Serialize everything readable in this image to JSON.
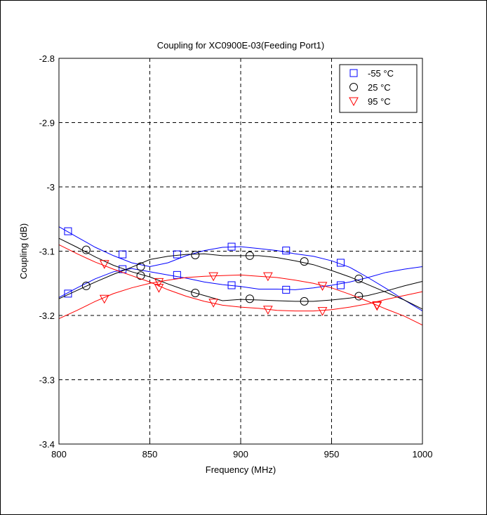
{
  "chart_data": {
    "type": "line",
    "title": "Coupling for XC0900E-03(Feeding Port1)",
    "xlabel": "Frequency (MHz)",
    "ylabel": "Coupling (dB)",
    "xlim": [
      800,
      1000
    ],
    "ylim": [
      -3.4,
      -2.8
    ],
    "xticks": [
      800,
      850,
      900,
      950,
      1000
    ],
    "xtick_labels": [
      "800",
      "850",
      "900",
      "950",
      "1000"
    ],
    "yticks": [
      -3.4,
      -3.3,
      -3.2,
      -3.1,
      -3.0,
      -2.9,
      -2.8
    ],
    "ytick_labels": [
      "-3.4",
      "-3.3",
      "-3.2",
      "-3.1",
      "-3",
      "-2.9",
      "-2.8"
    ],
    "grid": true,
    "legend_position": "top-right",
    "legend": [
      {
        "label": "-55 °C",
        "marker": "square",
        "color": "#0000ff"
      },
      {
        "label": "25 °C",
        "marker": "circle",
        "color": "#000000"
      },
      {
        "label": "95 °C",
        "marker": "triangle-down",
        "color": "#ff0000"
      }
    ],
    "series": [
      {
        "name": "-55 °C",
        "color": "#0000ff",
        "marker": "square",
        "lines": [
          {
            "x": [
              800,
              810,
              820,
              830,
              840,
              850,
              860,
              870,
              880,
              890,
              900,
              910,
              920,
              930,
              940,
              950,
              960,
              970,
              980,
              990,
              1000
            ],
            "y": [
              -3.062,
              -3.078,
              -3.094,
              -3.107,
              -3.118,
              -3.124,
              -3.118,
              -3.107,
              -3.099,
              -3.094,
              -3.093,
              -3.096,
              -3.099,
              -3.104,
              -3.108,
              -3.115,
              -3.125,
              -3.141,
              -3.158,
              -3.176,
              -3.193
            ]
          },
          {
            "x": [
              800,
              810,
              820,
              830,
              840,
              850,
              860,
              870,
              880,
              890,
              900,
              910,
              920,
              930,
              940,
              950,
              960,
              970,
              980,
              990,
              1000
            ],
            "y": [
              -3.172,
              -3.157,
              -3.143,
              -3.132,
              -3.127,
              -3.132,
              -3.137,
              -3.142,
              -3.148,
              -3.152,
              -3.155,
              -3.159,
              -3.159,
              -3.16,
              -3.157,
              -3.153,
              -3.148,
              -3.141,
              -3.133,
              -3.128,
              -3.124
            ]
          }
        ],
        "markers": {
          "x": [
            805,
            835,
            865,
            895,
            925,
            955,
            805,
            835,
            865,
            895,
            925,
            955
          ],
          "y": [
            -3.069,
            -3.105,
            -3.105,
            -3.093,
            -3.099,
            -3.118,
            -3.166,
            -3.128,
            -3.137,
            -3.153,
            -3.16,
            -3.153
          ]
        }
      },
      {
        "name": "25 °C",
        "color": "#000000",
        "marker": "circle",
        "lines": [
          {
            "x": [
              800,
              810,
              820,
              830,
              840,
              850,
              860,
              870,
              880,
              890,
              900,
              910,
              920,
              930,
              940,
              950,
              960,
              970,
              980,
              990,
              1000
            ],
            "y": [
              -3.08,
              -3.094,
              -3.109,
              -3.122,
              -3.132,
              -3.14,
              -3.151,
              -3.161,
              -3.169,
              -3.177,
              -3.175,
              -3.176,
              -3.177,
              -3.178,
              -3.178,
              -3.176,
              -3.173,
              -3.169,
              -3.162,
              -3.154,
              -3.147
            ]
          },
          {
            "x": [
              800,
              810,
              820,
              830,
              840,
              850,
              860,
              870,
              880,
              890,
              900,
              910,
              920,
              930,
              940,
              950,
              960,
              970,
              980,
              990,
              1000
            ],
            "y": [
              -3.174,
              -3.161,
              -3.148,
              -3.136,
              -3.125,
              -3.113,
              -3.108,
              -3.105,
              -3.104,
              -3.107,
              -3.107,
              -3.107,
              -3.11,
              -3.115,
              -3.121,
              -3.13,
              -3.14,
              -3.152,
              -3.164,
              -3.176,
              -3.19
            ]
          }
        ],
        "markers": {
          "x": [
            815,
            845,
            875,
            905,
            935,
            965,
            815,
            845,
            875,
            905,
            935,
            965
          ],
          "y": [
            -3.098,
            -3.138,
            -3.165,
            -3.174,
            -3.178,
            -3.17,
            -3.154,
            -3.124,
            -3.106,
            -3.107,
            -3.116,
            -3.143
          ]
        }
      },
      {
        "name": "95 °C",
        "color": "#ff0000",
        "marker": "triangle-down",
        "lines": [
          {
            "x": [
              800,
              810,
              820,
              830,
              840,
              850,
              860,
              870,
              880,
              890,
              900,
              910,
              920,
              930,
              940,
              950,
              960,
              970,
              980,
              990,
              1000
            ],
            "y": [
              -3.09,
              -3.104,
              -3.117,
              -3.128,
              -3.138,
              -3.148,
              -3.16,
              -3.17,
              -3.178,
              -3.184,
              -3.187,
              -3.189,
              -3.192,
              -3.193,
              -3.193,
              -3.191,
              -3.187,
              -3.182,
              -3.175,
              -3.169,
              -3.163
            ]
          },
          {
            "x": [
              800,
              810,
              820,
              830,
              840,
              850,
              860,
              870,
              880,
              890,
              900,
              910,
              920,
              930,
              940,
              950,
              960,
              970,
              980,
              990,
              1000
            ],
            "y": [
              -3.205,
              -3.192,
              -3.178,
              -3.166,
              -3.157,
              -3.15,
              -3.145,
              -3.141,
              -3.139,
              -3.138,
              -3.137,
              -3.139,
              -3.141,
              -3.145,
              -3.15,
              -3.157,
              -3.167,
              -3.178,
              -3.19,
              -3.201,
              -3.215
            ]
          }
        ],
        "markers": {
          "x": [
            825,
            855,
            885,
            915,
            945,
            975,
            825,
            855,
            885,
            915,
            945,
            975
          ],
          "y": [
            -3.12,
            -3.157,
            -3.18,
            -3.191,
            -3.193,
            -3.185,
            -3.174,
            -3.148,
            -3.139,
            -3.139,
            -3.154,
            -3.184
          ]
        }
      }
    ]
  }
}
